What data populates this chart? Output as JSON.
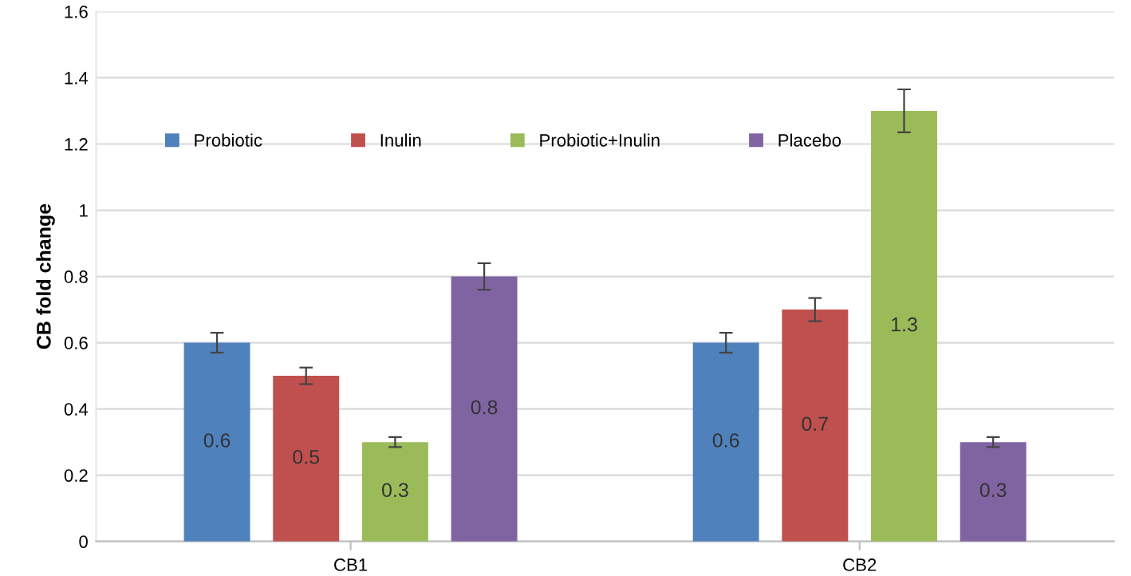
{
  "chart_data": {
    "type": "bar",
    "ylabel": "CB fold change",
    "categories": [
      "CB1",
      "CB2"
    ],
    "series": [
      {
        "name": "Probiotic",
        "color": "#4f81bd",
        "values": [
          0.6,
          0.6
        ],
        "errors": [
          0.03,
          0.03
        ]
      },
      {
        "name": "Inulin",
        "color": "#c0504d",
        "values": [
          0.5,
          0.7
        ],
        "errors": [
          0.025,
          0.035
        ]
      },
      {
        "name": "Probiotic+Inulin",
        "color": "#9bbb59",
        "values": [
          0.3,
          1.3
        ],
        "errors": [
          0.015,
          0.065
        ]
      },
      {
        "name": "Placebo",
        "color": "#8064a2",
        "values": [
          0.8,
          0.3
        ],
        "errors": [
          0.04,
          0.015
        ]
      }
    ],
    "ylim": [
      0,
      1.6
    ],
    "yticks": [
      0,
      {
        "value": 0.2,
        "label": "0.2"
      },
      {
        "value": 0.4,
        "label": "0.4"
      },
      {
        "value": 0.6,
        "label": "0.6"
      },
      {
        "value": 0.8,
        "label": "0.8"
      },
      1,
      {
        "value": 1.2,
        "label": "1.2"
      },
      {
        "value": 1.4,
        "label": "1.4"
      },
      {
        "value": 1.6,
        "label": "1.6"
      }
    ],
    "grid": "y",
    "legend": "top",
    "data_labels": true
  }
}
